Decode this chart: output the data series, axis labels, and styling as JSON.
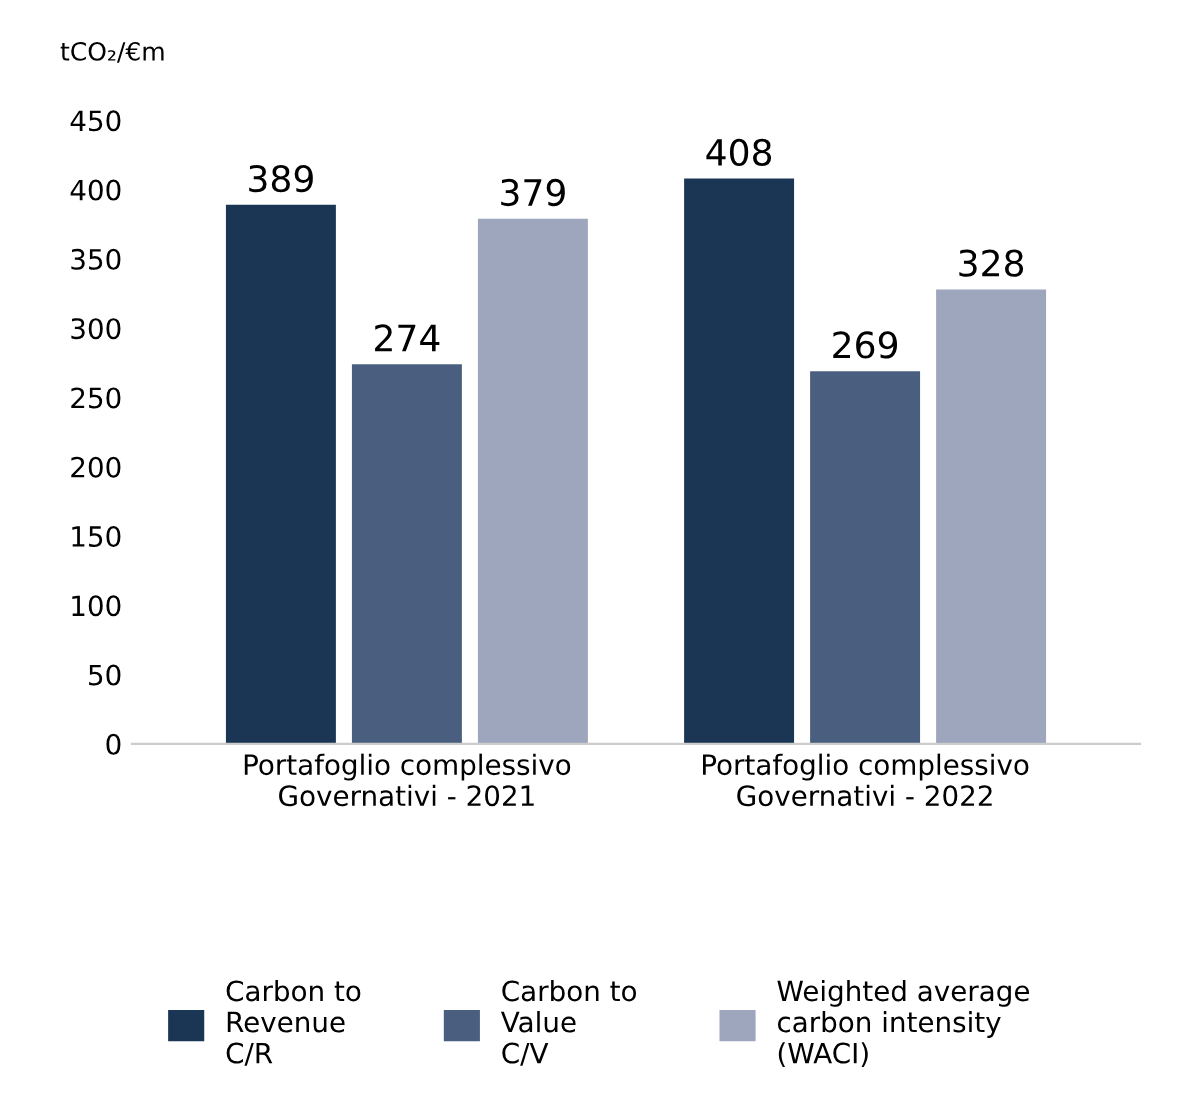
{
  "chart_data": {
    "type": "bar",
    "ylabel": "tCO₂/€m",
    "categories": [
      "Portafoglio complessivo\nGovernativi - 2021",
      "Portafoglio complessivo\nGovernativi - 2022"
    ],
    "series": [
      {
        "name": "Carbon to\nRevenue\nC/R",
        "color": "#1b3655",
        "values": [
          389,
          408
        ]
      },
      {
        "name": "Carbon to\nValue\nC/V",
        "color": "#4a5f80",
        "values": [
          274,
          269
        ]
      },
      {
        "name": "Weighted average\ncarbon intensity\n(WACI)",
        "color": "#9da6bd",
        "values": [
          379,
          328
        ]
      }
    ],
    "ylim": [
      0,
      450
    ],
    "yticks": [
      0,
      50,
      100,
      150,
      200,
      250,
      300,
      350,
      400,
      450
    ],
    "grid": false,
    "legend": "bottom",
    "data_labels": true
  }
}
